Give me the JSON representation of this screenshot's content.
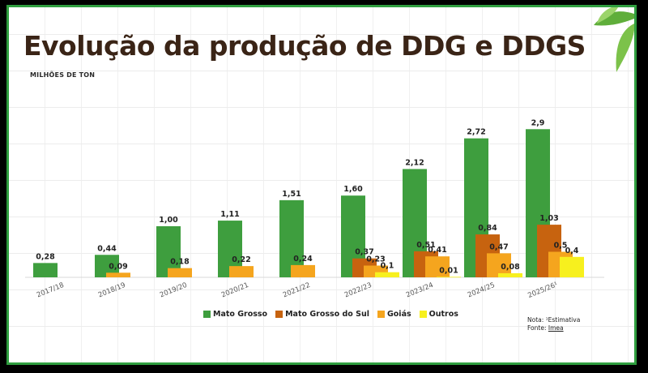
{
  "title": "Evolução da produção de DDG e DDGS",
  "unit_label": "MILHÕES DE TON",
  "note": "Nota: ¹Estimativa",
  "source_prefix": "Fonte: ",
  "source": "Imea",
  "colors": {
    "Mato Grosso": "#3e9e3e",
    "Mato Grosso do Sul": "#c7630f",
    "Goiás": "#f5a51e",
    "Outros": "#f7f01e",
    "title": "#3a2416",
    "border": "#2f9e3f"
  },
  "chart_data": {
    "type": "bar",
    "title": "Evolução da produção de DDG e DDGS",
    "ylabel": "MILHÕES DE TON",
    "xlabel": "",
    "ylim": [
      0,
      4
    ],
    "grid": true,
    "legend": "bottom",
    "categories": [
      "2017/18",
      "2018/19",
      "2019/20",
      "2020/21",
      "2021/22",
      "2022/23",
      "2023/24",
      "2024/25",
      "2025/26¹"
    ],
    "series": [
      {
        "name": "Mato Grosso",
        "values": [
          0.28,
          0.44,
          1.0,
          1.11,
          1.51,
          1.6,
          2.12,
          2.72,
          2.9
        ],
        "labels": [
          "0,28",
          "0,44",
          "1,00",
          "1,11",
          "1,51",
          "1,60",
          "2,12",
          "2,72",
          "2,9"
        ]
      },
      {
        "name": "Mato Grosso do Sul",
        "values": [
          null,
          null,
          null,
          null,
          null,
          0.37,
          0.51,
          0.84,
          1.03
        ],
        "labels": [
          null,
          null,
          null,
          null,
          null,
          "0,37",
          "0,51",
          "0,84",
          "1,03"
        ]
      },
      {
        "name": "Goiás",
        "values": [
          null,
          0.09,
          0.18,
          0.22,
          0.24,
          0.23,
          0.41,
          0.47,
          0.5
        ],
        "labels": [
          null,
          "0,09",
          "0,18",
          "0,22",
          "0,24",
          "0,23",
          "0,41",
          "0,47",
          "0,5"
        ]
      },
      {
        "name": "Outros",
        "values": [
          null,
          null,
          null,
          null,
          null,
          0.1,
          0.01,
          0.08,
          0.4
        ],
        "labels": [
          null,
          null,
          null,
          null,
          null,
          "0,1",
          "0,01",
          "0,08",
          "0,4"
        ]
      }
    ]
  }
}
